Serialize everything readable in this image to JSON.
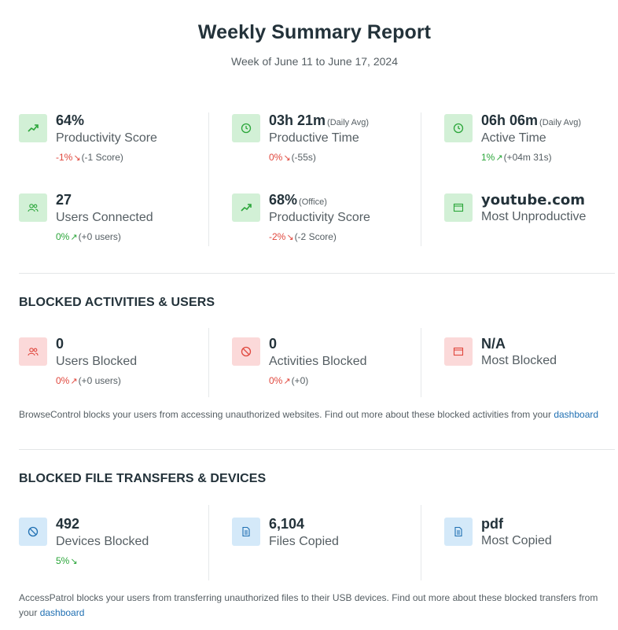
{
  "header": {
    "title": "Weekly Summary Report",
    "subtitle": "Week of June 11 to June 17, 2024"
  },
  "summary": {
    "productivity_score": {
      "value": "64%",
      "label": "Productivity Score",
      "change_pct": "-1%",
      "change_detail": "(-1 Score)"
    },
    "productive_time": {
      "value": "03h 21m",
      "qualifier": "(Daily Avg)",
      "label": "Productive Time",
      "change_pct": "0%",
      "change_detail": "(-55s)"
    },
    "active_time": {
      "value": "06h 06m",
      "qualifier": "(Daily Avg)",
      "label": "Active Time",
      "change_pct": "1%",
      "change_detail": "(+04m 31s)"
    },
    "users_connected": {
      "value": "27",
      "label": "Users Connected",
      "change_pct": "0%",
      "change_detail": "(+0 users)"
    },
    "office_productivity": {
      "value": "68%",
      "qualifier": "(Office)",
      "label": "Productivity Score",
      "change_pct": "-2%",
      "change_detail": "(-2 Score)"
    },
    "most_unproductive": {
      "value": "youtube.com",
      "label": "Most Unproductive"
    }
  },
  "blocked_activities": {
    "title": "BLOCKED ACTIVITIES & USERS",
    "users_blocked": {
      "value": "0",
      "label": "Users Blocked",
      "change_pct": "0%",
      "change_detail": "(+0 users)"
    },
    "activities_blocked": {
      "value": "0",
      "label": "Activities Blocked",
      "change_pct": "0%",
      "change_detail": "(+0)"
    },
    "most_blocked": {
      "value": "N/A",
      "label": "Most Blocked"
    },
    "note_text": "BrowseControl blocks your users from accessing unauthorized websites. Find out more about these blocked activities from your",
    "note_link": "dashboard"
  },
  "blocked_transfers": {
    "title": "BLOCKED FILE TRANSFERS & DEVICES",
    "devices_blocked": {
      "value": "492",
      "label": "Devices Blocked",
      "change_pct": "5%"
    },
    "files_copied": {
      "value": "6,104",
      "label": "Files Copied"
    },
    "most_copied": {
      "value": "pdf",
      "label": "Most Copied"
    },
    "note_text": "AccessPatrol blocks your users from transferring unauthorized files to their USB devices. Find out more about these blocked transfers from your",
    "note_link": "dashboard"
  },
  "arrows": {
    "down": "↘",
    "up": "↗"
  },
  "colors": {
    "negative": "#e0473d",
    "positive": "#2ba63a",
    "link": "#1f6fb2",
    "green_bg": "#d2f0d6",
    "red_bg": "#fbd9d9",
    "blue_bg": "#d4e9f9"
  }
}
